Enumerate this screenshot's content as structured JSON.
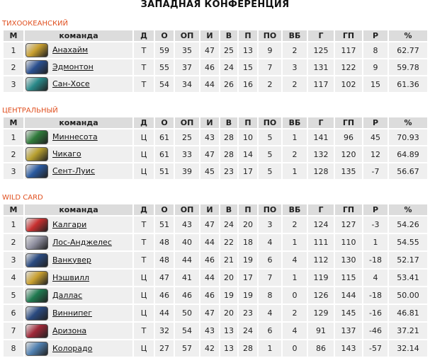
{
  "title": "ЗАПАДНАЯ КОНФЕРЕНЦИЯ",
  "headers": [
    "М",
    "команда",
    "Д",
    "О",
    "ОП",
    "И",
    "В",
    "П",
    "ПО",
    "ВБ",
    "Г",
    "ГП",
    "Р",
    "%"
  ],
  "sections": [
    {
      "name": "ТИХООКЕАНСКИЙ",
      "rows": [
        {
          "pos": "1",
          "team": "Анахайм",
          "logo": "anaheim-logo",
          "color": "#c9a030",
          "d": "Т",
          "o": "59",
          "op": "35",
          "i": "47",
          "w": "25",
          "l": "13",
          "po": "9",
          "vb": "2",
          "g": "125",
          "gp": "117",
          "r": "8",
          "pct": "62.77"
        },
        {
          "pos": "2",
          "team": "Эдмонтон",
          "logo": "edmonton-logo",
          "color": "#2a4f8f",
          "d": "Т",
          "o": "55",
          "op": "37",
          "i": "46",
          "w": "24",
          "l": "15",
          "po": "7",
          "vb": "3",
          "g": "131",
          "gp": "122",
          "r": "9",
          "pct": "59.78"
        },
        {
          "pos": "3",
          "team": "Сан-Хосе",
          "logo": "san-jose-logo",
          "color": "#2a8a8a",
          "d": "Т",
          "o": "54",
          "op": "34",
          "i": "44",
          "w": "26",
          "l": "16",
          "po": "2",
          "vb": "2",
          "g": "117",
          "gp": "102",
          "r": "15",
          "pct": "61.36"
        }
      ]
    },
    {
      "name": "ЦЕНТРАЛЬНЫЙ",
      "rows": [
        {
          "pos": "1",
          "team": "Миннесота",
          "logo": "minnesota-logo",
          "color": "#2f7a3a",
          "d": "Ц",
          "o": "61",
          "op": "25",
          "i": "43",
          "w": "28",
          "l": "10",
          "po": "5",
          "vb": "1",
          "g": "141",
          "gp": "96",
          "r": "45",
          "pct": "70.93"
        },
        {
          "pos": "2",
          "team": "Чикаго",
          "logo": "chicago-logo",
          "color": "#b8a030",
          "d": "Ц",
          "o": "61",
          "op": "33",
          "i": "47",
          "w": "28",
          "l": "14",
          "po": "5",
          "vb": "2",
          "g": "132",
          "gp": "120",
          "r": "12",
          "pct": "64.89"
        },
        {
          "pos": "3",
          "team": "Сент-Луис",
          "logo": "st-louis-logo",
          "color": "#2a5aa0",
          "d": "Ц",
          "o": "51",
          "op": "39",
          "i": "45",
          "w": "23",
          "l": "17",
          "po": "5",
          "vb": "1",
          "g": "128",
          "gp": "135",
          "r": "-7",
          "pct": "56.67"
        }
      ]
    },
    {
      "name": "WILD CARD",
      "rows": [
        {
          "pos": "1",
          "team": "Калгари",
          "logo": "calgary-logo",
          "color": "#c83030",
          "d": "Т",
          "o": "51",
          "op": "43",
          "i": "47",
          "w": "24",
          "l": "20",
          "po": "3",
          "vb": "2",
          "g": "124",
          "gp": "127",
          "r": "-3",
          "pct": "54.26"
        },
        {
          "pos": "2",
          "team": "Лос-Анджелес",
          "logo": "los-angeles-logo",
          "color": "#9090a0",
          "d": "Т",
          "o": "48",
          "op": "40",
          "i": "44",
          "w": "22",
          "l": "18",
          "po": "4",
          "vb": "1",
          "g": "111",
          "gp": "110",
          "r": "1",
          "pct": "54.55"
        },
        {
          "pos": "3",
          "team": "Ванкувер",
          "logo": "vancouver-logo",
          "color": "#2a4a80",
          "d": "Т",
          "o": "48",
          "op": "44",
          "i": "46",
          "w": "21",
          "l": "19",
          "po": "6",
          "vb": "4",
          "g": "112",
          "gp": "130",
          "r": "-18",
          "pct": "52.17"
        },
        {
          "pos": "4",
          "team": "Нэшвилл",
          "logo": "nashville-logo",
          "color": "#c9a030",
          "d": "Ц",
          "o": "47",
          "op": "41",
          "i": "44",
          "w": "20",
          "l": "17",
          "po": "7",
          "vb": "1",
          "g": "119",
          "gp": "115",
          "r": "4",
          "pct": "53.41"
        },
        {
          "pos": "5",
          "team": "Даллас",
          "logo": "dallas-logo",
          "color": "#1f7a50",
          "d": "Ц",
          "o": "46",
          "op": "46",
          "i": "46",
          "w": "19",
          "l": "19",
          "po": "8",
          "vb": "0",
          "g": "126",
          "gp": "144",
          "r": "-18",
          "pct": "50.00"
        },
        {
          "pos": "6",
          "team": "Виннипег",
          "logo": "winnipeg-logo",
          "color": "#2a4a80",
          "d": "Ц",
          "o": "44",
          "op": "50",
          "i": "47",
          "w": "20",
          "l": "23",
          "po": "4",
          "vb": "2",
          "g": "129",
          "gp": "145",
          "r": "-16",
          "pct": "46.81"
        },
        {
          "pos": "7",
          "team": "Аризона",
          "logo": "arizona-logo",
          "color": "#a02838",
          "d": "Т",
          "o": "32",
          "op": "54",
          "i": "43",
          "w": "13",
          "l": "24",
          "po": "6",
          "vb": "4",
          "g": "91",
          "gp": "137",
          "r": "-46",
          "pct": "37.21"
        },
        {
          "pos": "8",
          "team": "Колорадо",
          "logo": "colorado-logo",
          "color": "#5080b0",
          "d": "Ц",
          "o": "27",
          "op": "57",
          "i": "42",
          "w": "13",
          "l": "28",
          "po": "1",
          "vb": "0",
          "g": "86",
          "gp": "143",
          "r": "-57",
          "pct": "32.14"
        }
      ]
    }
  ]
}
